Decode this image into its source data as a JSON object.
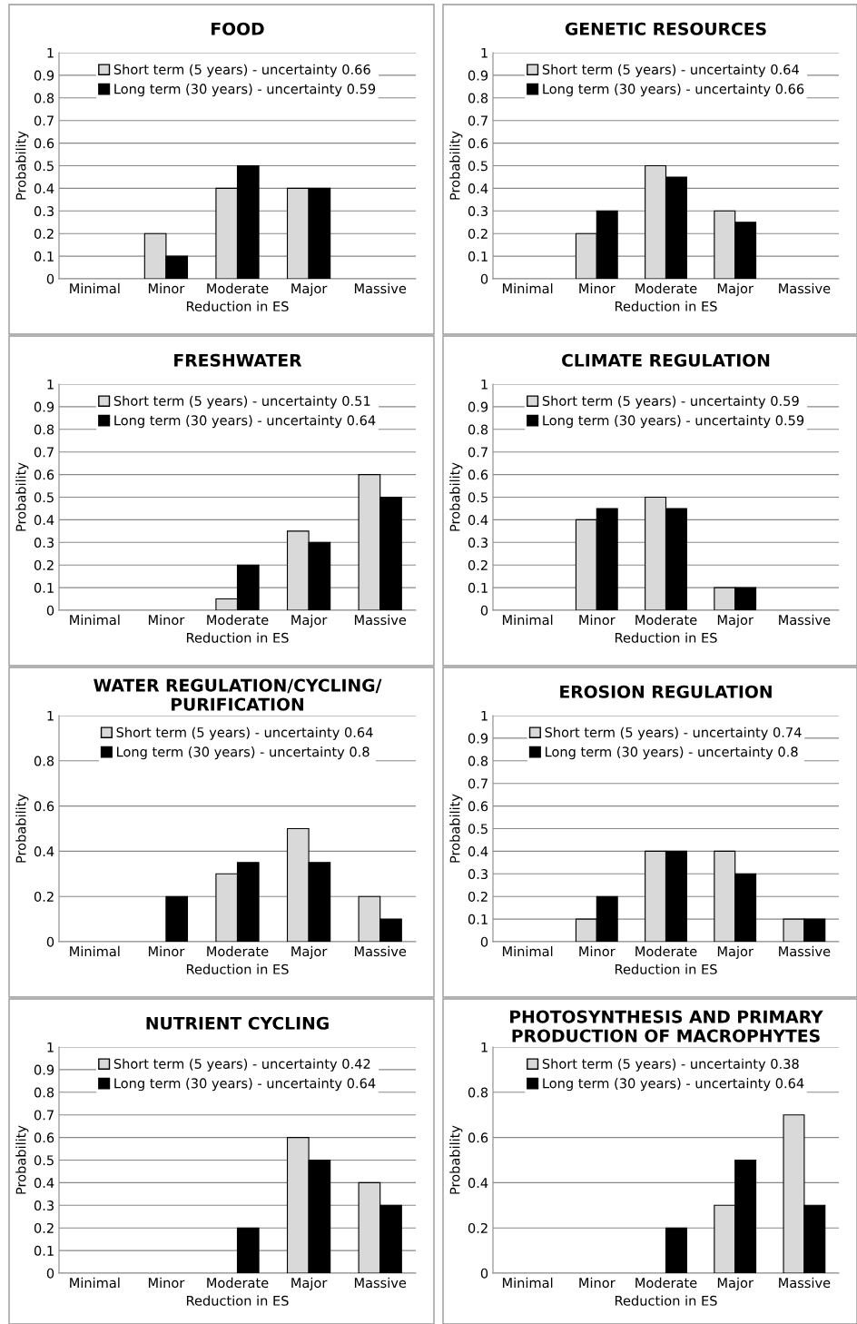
{
  "chart_data": [
    {
      "type": "bar",
      "title": "FOOD",
      "xlabel": "Reduction in ES",
      "ylabel": "Probability",
      "categories": [
        "Minimal",
        "Minor",
        "Moderate",
        "Major",
        "Massive"
      ],
      "ylim": [
        0,
        1
      ],
      "yticks": [
        0,
        0.1,
        0.2,
        0.3,
        0.4,
        0.5,
        0.6,
        0.7,
        0.8,
        0.9,
        1
      ],
      "grid": "y",
      "legend": "top",
      "series": [
        {
          "name": "Short term (5 years) - uncertainty 0.66",
          "color": "#d9d9d9",
          "values": [
            0,
            0.2,
            0.4,
            0.4,
            0
          ]
        },
        {
          "name": "Long term (30 years) - uncertainty 0.59",
          "color": "#000000",
          "values": [
            0,
            0.1,
            0.5,
            0.4,
            0
          ]
        }
      ]
    },
    {
      "type": "bar",
      "title": "GENETIC RESOURCES",
      "xlabel": "Reduction in ES",
      "ylabel": "Probability",
      "categories": [
        "Minimal",
        "Minor",
        "Moderate",
        "Major",
        "Massive"
      ],
      "ylim": [
        0,
        1
      ],
      "yticks": [
        0,
        0.1,
        0.2,
        0.3,
        0.4,
        0.5,
        0.6,
        0.7,
        0.8,
        0.9,
        1
      ],
      "grid": "y",
      "legend": "top",
      "series": [
        {
          "name": "Short term (5 years) - uncertainty 0.64",
          "color": "#d9d9d9",
          "values": [
            0,
            0.2,
            0.5,
            0.3,
            0
          ]
        },
        {
          "name": "Long term (30 years) - uncertainty 0.66",
          "color": "#000000",
          "values": [
            0,
            0.3,
            0.45,
            0.25,
            0
          ]
        }
      ]
    },
    {
      "type": "bar",
      "title": "FRESHWATER",
      "xlabel": "Reduction in ES",
      "ylabel": "Probability",
      "categories": [
        "Minimal",
        "Minor",
        "Moderate",
        "Major",
        "Massive"
      ],
      "ylim": [
        0,
        1
      ],
      "yticks": [
        0,
        0.1,
        0.2,
        0.3,
        0.4,
        0.5,
        0.6,
        0.7,
        0.8,
        0.9,
        1
      ],
      "grid": "y",
      "legend": "top",
      "series": [
        {
          "name": "Short term (5 years) - uncertainty 0.51",
          "color": "#d9d9d9",
          "values": [
            0,
            0,
            0.05,
            0.35,
            0.6
          ]
        },
        {
          "name": "Long term (30 years) - uncertainty 0.64",
          "color": "#000000",
          "values": [
            0,
            0,
            0.2,
            0.3,
            0.5
          ]
        }
      ]
    },
    {
      "type": "bar",
      "title": "CLIMATE REGULATION",
      "xlabel": "Reduction in ES",
      "ylabel": "Probability",
      "categories": [
        "Minimal",
        "Minor",
        "Moderate",
        "Major",
        "Massive"
      ],
      "ylim": [
        0,
        1
      ],
      "yticks": [
        0,
        0.1,
        0.2,
        0.3,
        0.4,
        0.5,
        0.6,
        0.7,
        0.8,
        0.9,
        1
      ],
      "grid": "y",
      "legend": "top",
      "series": [
        {
          "name": "Short term (5 years) - uncertainty 0.59",
          "color": "#d9d9d9",
          "values": [
            0,
            0.4,
            0.5,
            0.1,
            0
          ]
        },
        {
          "name": "Long term (30 years) - uncertainty 0.59",
          "color": "#000000",
          "values": [
            0,
            0.45,
            0.45,
            0.1,
            0
          ]
        }
      ]
    },
    {
      "type": "bar",
      "title": "WATER REGULATION/CYCLING/\nPURIFICATION",
      "xlabel": "Reduction in ES",
      "ylabel": "Probability",
      "categories": [
        "Minimal",
        "Minor",
        "Moderate",
        "Major",
        "Massive"
      ],
      "ylim": [
        0,
        1
      ],
      "yticks": [
        0,
        0.2,
        0.4,
        0.6,
        0.8,
        1
      ],
      "grid": "y",
      "legend": "top",
      "series": [
        {
          "name": "Short term (5 years) - uncertainty 0.64",
          "color": "#d9d9d9",
          "values": [
            0,
            0,
            0.3,
            0.5,
            0.2
          ]
        },
        {
          "name": "Long term (30 years) - uncertainty 0.8",
          "color": "#000000",
          "values": [
            0,
            0.2,
            0.35,
            0.35,
            0.1
          ]
        }
      ]
    },
    {
      "type": "bar",
      "title": "EROSION REGULATION",
      "xlabel": "Reduction in ES",
      "ylabel": "Probability",
      "categories": [
        "Minimal",
        "Minor",
        "Moderate",
        "Major",
        "Massive"
      ],
      "ylim": [
        0,
        1
      ],
      "yticks": [
        0,
        0.1,
        0.2,
        0.3,
        0.4,
        0.5,
        0.6,
        0.7,
        0.8,
        0.9,
        1
      ],
      "grid": "y",
      "legend": "top",
      "series": [
        {
          "name": "Short term (5 years) - uncertainty 0.74",
          "color": "#d9d9d9",
          "values": [
            0,
            0.1,
            0.4,
            0.4,
            0.1
          ]
        },
        {
          "name": "Long term (30 years) - uncertainty 0.8",
          "color": "#000000",
          "values": [
            0,
            0.2,
            0.4,
            0.3,
            0.1
          ]
        }
      ]
    },
    {
      "type": "bar",
      "title": "NUTRIENT CYCLING",
      "xlabel": "Reduction in ES",
      "ylabel": "Probability",
      "categories": [
        "Minimal",
        "Minor",
        "Moderate",
        "Major",
        "Massive"
      ],
      "ylim": [
        0,
        1
      ],
      "yticks": [
        0,
        0.1,
        0.2,
        0.3,
        0.4,
        0.5,
        0.6,
        0.7,
        0.8,
        0.9,
        1
      ],
      "grid": "y",
      "legend": "top",
      "series": [
        {
          "name": "Short term (5 years) - uncertainty 0.42",
          "color": "#d9d9d9",
          "values": [
            0,
            0,
            0,
            0.6,
            0.4
          ]
        },
        {
          "name": "Long term (30 years) - uncertainty 0.64",
          "color": "#000000",
          "values": [
            0,
            0,
            0.2,
            0.5,
            0.3
          ]
        }
      ]
    },
    {
      "type": "bar",
      "title": "PHOTOSYNTHESIS AND PRIMARY\nPRODUCTION OF MACROPHYTES",
      "xlabel": "Reduction in ES",
      "ylabel": "Probability",
      "categories": [
        "Minimal",
        "Minor",
        "Moderate",
        "Major",
        "Massive"
      ],
      "ylim": [
        0,
        1
      ],
      "yticks": [
        0,
        0.2,
        0.4,
        0.6,
        0.8,
        1
      ],
      "grid": "y",
      "legend": "top",
      "series": [
        {
          "name": "Short term (5 years) - uncertainty 0.38",
          "color": "#d9d9d9",
          "values": [
            0,
            0,
            0,
            0.3,
            0.7
          ]
        },
        {
          "name": "Long term (30 years) - uncertainty 0.64",
          "color": "#000000",
          "values": [
            0,
            0,
            0.2,
            0.5,
            0.3
          ]
        }
      ]
    }
  ]
}
